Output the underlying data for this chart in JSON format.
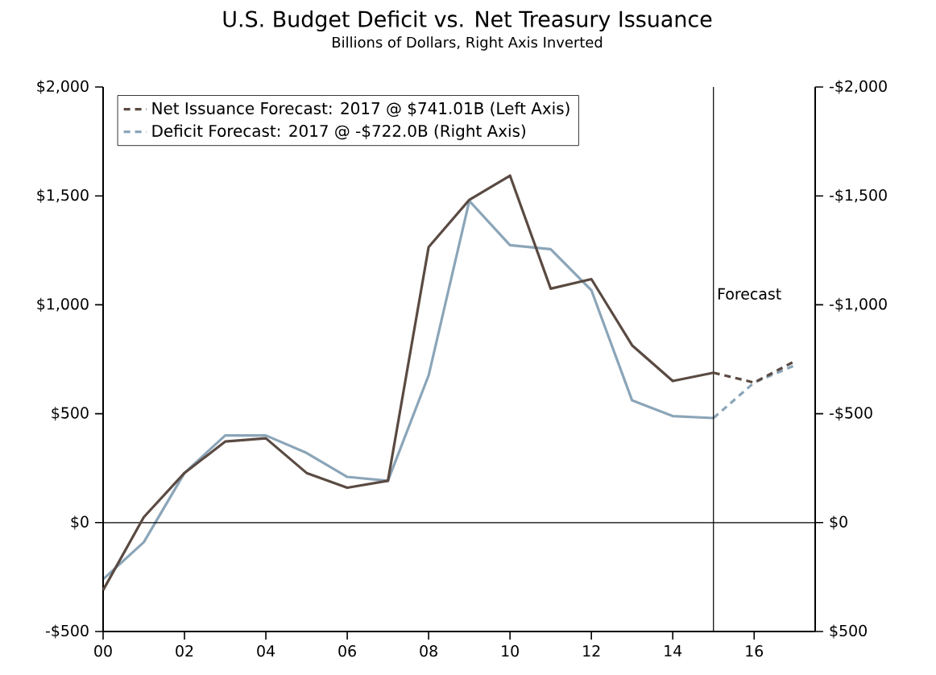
{
  "chart_data": {
    "type": "line",
    "title": "U.S. Budget Deficit vs. Net Treasury Issuance",
    "subtitle": "Billions of Dollars, Right Axis Inverted",
    "x": [
      0,
      1,
      2,
      3,
      4,
      5,
      6,
      7,
      8,
      9,
      10,
      11,
      12,
      13,
      14,
      15,
      16,
      17
    ],
    "series": [
      {
        "color": "#5a4a42",
        "line_style": "solid",
        "values": [
          -310,
          25,
          228,
          372,
          387,
          228,
          160,
          192,
          1265,
          1482,
          1593,
          1074,
          1118,
          814,
          650,
          688,
          null,
          null
        ]
      },
      {
        "name": "Net Issuance Forecast: 2017 @ $741.01B (Left Axis)",
        "color": "#5a4a42",
        "line_style": "dashed",
        "values": [
          null,
          null,
          null,
          null,
          null,
          null,
          null,
          null,
          null,
          null,
          null,
          null,
          null,
          null,
          null,
          688,
          643,
          741.01
        ]
      },
      {
        "color": "#8ba5b8",
        "line_style": "solid",
        "axis": "y2",
        "values": [
          260,
          90,
          -228,
          -400,
          -400,
          -320,
          -210,
          -192,
          -676,
          -1477,
          -1274,
          -1255,
          -1067,
          -561,
          -489,
          -480,
          null,
          null
        ]
      },
      {
        "name": "Deficit Forecast: 2017 @ -$722.0B (Right Axis)",
        "color": "#8ba5b8",
        "line_style": "dashed",
        "axis": "y2",
        "values": [
          null,
          null,
          null,
          null,
          null,
          null,
          null,
          null,
          null,
          null,
          null,
          null,
          null,
          null,
          null,
          -480,
          -643,
          -722.0
        ]
      }
    ],
    "xlim": [
      0,
      17.5
    ],
    "xticks": [
      {
        "value": 0,
        "label": "00"
      },
      {
        "value": 2,
        "label": "02"
      },
      {
        "value": 4,
        "label": "04"
      },
      {
        "value": 6,
        "label": "06"
      },
      {
        "value": 8,
        "label": "08"
      },
      {
        "value": 10,
        "label": "10"
      },
      {
        "value": 12,
        "label": "12"
      },
      {
        "value": 14,
        "label": "14"
      },
      {
        "value": 16,
        "label": "16"
      }
    ],
    "ylim": [
      -500,
      2000
    ],
    "yticks": [
      {
        "value": -500,
        "label": "-$500"
      },
      {
        "value": 0,
        "label": "$0"
      },
      {
        "value": 500,
        "label": "$500"
      },
      {
        "value": 1000,
        "label": "$1,000"
      },
      {
        "value": 1500,
        "label": "$1,500"
      },
      {
        "value": 2000,
        "label": "$2,000"
      }
    ],
    "y2lim": [
      500,
      -2000
    ],
    "y2ticks": [
      {
        "value": 500,
        "label": "$500"
      },
      {
        "value": 0,
        "label": "$0"
      },
      {
        "value": -500,
        "label": "-$500"
      },
      {
        "value": -1000,
        "label": "-$1,000"
      },
      {
        "value": -1500,
        "label": "-$1,500"
      },
      {
        "value": -2000,
        "label": "-$2,000"
      }
    ],
    "ref_lines": [
      {
        "axis": "x",
        "value": 15,
        "label": "Forecast",
        "color": "#000000"
      },
      {
        "axis": "y",
        "value": 0,
        "color": "#000000"
      }
    ],
    "grid": false,
    "legend": "top left",
    "marker": "none"
  }
}
